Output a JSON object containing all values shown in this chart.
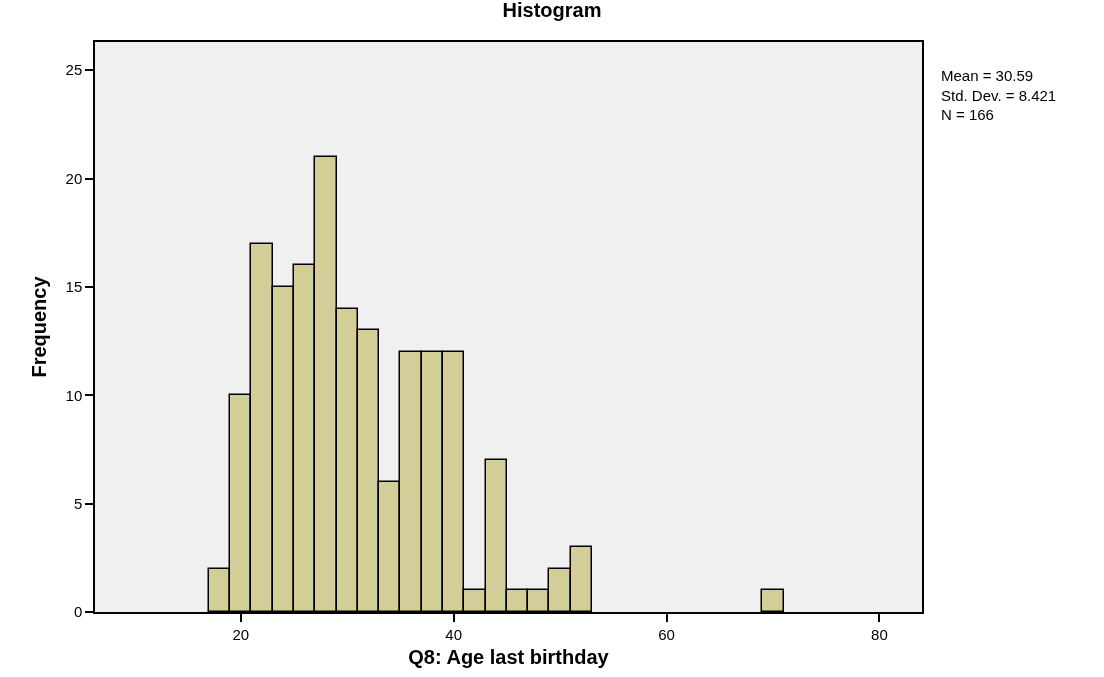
{
  "chart_data": {
    "type": "histogram",
    "title": "Histogram",
    "xlabel": "Q8: Age last birthday",
    "ylabel": "Frequency",
    "bins": [
      17,
      19,
      21,
      23,
      25,
      27,
      29,
      31,
      33,
      35,
      37,
      39,
      41,
      43,
      45,
      47,
      49,
      51,
      53,
      55,
      57,
      59,
      61,
      63,
      65,
      67,
      69,
      71
    ],
    "values": [
      2,
      10,
      17,
      15,
      16,
      21,
      14,
      13,
      6,
      12,
      12,
      12,
      1,
      7,
      1,
      1,
      2,
      3,
      0,
      0,
      0,
      0,
      0,
      0,
      0,
      0,
      1
    ],
    "color": "#d3ce97",
    "xlim": [
      6.3,
      84
    ],
    "xticks": [
      20,
      40,
      60,
      80
    ],
    "ylim": [
      0,
      26.3
    ],
    "yticks": [
      0,
      5,
      10,
      15,
      20,
      25
    ],
    "annotations": [
      "Mean = 30.59\nStd. Dev. = 8.421\nN = 166"
    ]
  }
}
